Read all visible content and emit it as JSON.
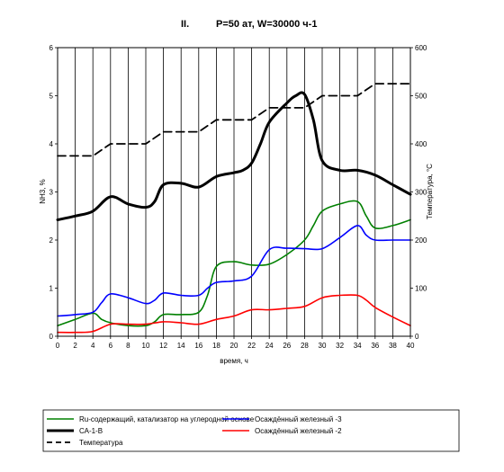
{
  "chart_data": {
    "type": "line",
    "title_prefix": "II.",
    "title": "P=50 ат,  W=30000 ч-1",
    "xlabel": "время, ч",
    "ylabel": "NH3, %",
    "y2label": "Температура, °С",
    "xlim": [
      0,
      40
    ],
    "ylim": [
      0,
      6
    ],
    "y2lim": [
      0,
      600
    ],
    "x_ticks": [
      0,
      2,
      4,
      6,
      8,
      10,
      12,
      14,
      16,
      18,
      20,
      22,
      24,
      26,
      28,
      30,
      32,
      34,
      36,
      38,
      40
    ],
    "y_ticks": [
      0,
      1,
      2,
      3,
      4,
      5,
      6
    ],
    "y2_ticks": [
      0,
      100,
      200,
      300,
      400,
      500,
      600
    ],
    "grid": "vertical lines every 2 h",
    "legend_position": "bottom",
    "series": [
      {
        "name": "Ru-содержащий, катализатор на углеродной основе",
        "color": "#008000",
        "style": "solid",
        "axis": "left",
        "points": [
          [
            0,
            0.22
          ],
          [
            2,
            0.35
          ],
          [
            4,
            0.48
          ],
          [
            5,
            0.35
          ],
          [
            6,
            0.28
          ],
          [
            8,
            0.22
          ],
          [
            10,
            0.22
          ],
          [
            11,
            0.3
          ],
          [
            12,
            0.45
          ],
          [
            14,
            0.45
          ],
          [
            16,
            0.5
          ],
          [
            17,
            0.85
          ],
          [
            18,
            1.45
          ],
          [
            20,
            1.55
          ],
          [
            22,
            1.48
          ],
          [
            24,
            1.5
          ],
          [
            26,
            1.7
          ],
          [
            28,
            2.0
          ],
          [
            29,
            2.3
          ],
          [
            30,
            2.6
          ],
          [
            32,
            2.75
          ],
          [
            34,
            2.8
          ],
          [
            35,
            2.5
          ],
          [
            36,
            2.25
          ],
          [
            38,
            2.3
          ],
          [
            40,
            2.42
          ]
        ]
      },
      {
        "name": "Осаждённый железный -3",
        "color": "#0000ff",
        "style": "solid",
        "axis": "left",
        "points": [
          [
            0,
            0.42
          ],
          [
            2,
            0.45
          ],
          [
            4,
            0.5
          ],
          [
            5,
            0.7
          ],
          [
            6,
            0.88
          ],
          [
            8,
            0.8
          ],
          [
            10,
            0.68
          ],
          [
            11,
            0.75
          ],
          [
            12,
            0.9
          ],
          [
            14,
            0.85
          ],
          [
            16,
            0.85
          ],
          [
            17,
            1.0
          ],
          [
            18,
            1.12
          ],
          [
            20,
            1.15
          ],
          [
            22,
            1.25
          ],
          [
            24,
            1.8
          ],
          [
            26,
            1.83
          ],
          [
            28,
            1.82
          ],
          [
            30,
            1.82
          ],
          [
            32,
            2.05
          ],
          [
            34,
            2.3
          ],
          [
            35,
            2.1
          ],
          [
            36,
            2.0
          ],
          [
            38,
            2.0
          ],
          [
            40,
            2.0
          ]
        ]
      },
      {
        "name": "СА-1-В",
        "color": "#000000",
        "style": "bold",
        "axis": "left",
        "points": [
          [
            0,
            2.42
          ],
          [
            2,
            2.5
          ],
          [
            4,
            2.6
          ],
          [
            6,
            2.9
          ],
          [
            8,
            2.75
          ],
          [
            10,
            2.68
          ],
          [
            11,
            2.8
          ],
          [
            12,
            3.15
          ],
          [
            14,
            3.18
          ],
          [
            16,
            3.1
          ],
          [
            18,
            3.32
          ],
          [
            20,
            3.4
          ],
          [
            21,
            3.45
          ],
          [
            22,
            3.6
          ],
          [
            23,
            4.0
          ],
          [
            24,
            4.45
          ],
          [
            26,
            4.85
          ],
          [
            27,
            5.0
          ],
          [
            28,
            5.03
          ],
          [
            29,
            4.5
          ],
          [
            30,
            3.65
          ],
          [
            32,
            3.45
          ],
          [
            34,
            3.45
          ],
          [
            36,
            3.35
          ],
          [
            38,
            3.15
          ],
          [
            40,
            2.95
          ]
        ]
      },
      {
        "name": "Осаждённый железный -2",
        "color": "#ff0000",
        "style": "solid",
        "axis": "left",
        "points": [
          [
            0,
            0.08
          ],
          [
            2,
            0.08
          ],
          [
            4,
            0.1
          ],
          [
            6,
            0.25
          ],
          [
            8,
            0.25
          ],
          [
            10,
            0.25
          ],
          [
            12,
            0.3
          ],
          [
            14,
            0.28
          ],
          [
            16,
            0.25
          ],
          [
            18,
            0.35
          ],
          [
            20,
            0.42
          ],
          [
            22,
            0.55
          ],
          [
            24,
            0.55
          ],
          [
            26,
            0.58
          ],
          [
            28,
            0.62
          ],
          [
            30,
            0.8
          ],
          [
            32,
            0.85
          ],
          [
            34,
            0.85
          ],
          [
            35,
            0.75
          ],
          [
            36,
            0.6
          ],
          [
            38,
            0.4
          ],
          [
            40,
            0.22
          ]
        ]
      },
      {
        "name": "Температура",
        "color": "#000000",
        "style": "dashed",
        "axis": "right",
        "points": [
          [
            0,
            375
          ],
          [
            4,
            375
          ],
          [
            6,
            400
          ],
          [
            10,
            400
          ],
          [
            12,
            425
          ],
          [
            16,
            425
          ],
          [
            18,
            450
          ],
          [
            22,
            450
          ],
          [
            24,
            475
          ],
          [
            28,
            475
          ],
          [
            30,
            500
          ],
          [
            34,
            500
          ],
          [
            36,
            525
          ],
          [
            40,
            525
          ]
        ]
      }
    ]
  }
}
